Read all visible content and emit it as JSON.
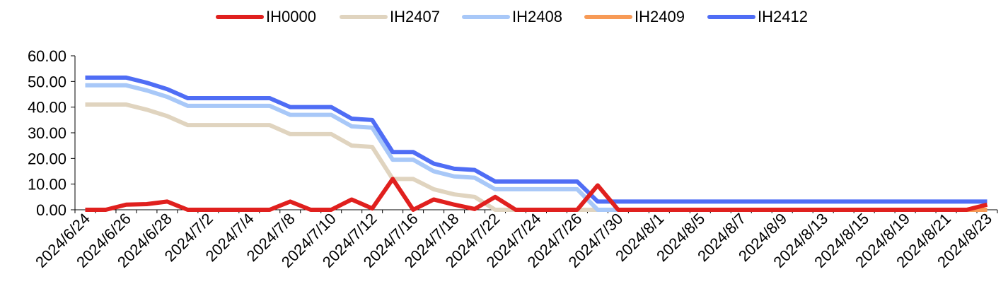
{
  "chart_data": {
    "type": "line",
    "title": "",
    "xlabel": "",
    "ylabel": "",
    "ylim": [
      0,
      60
    ],
    "yticks": [
      "60.00",
      "50.00",
      "40.00",
      "30.00",
      "20.00",
      "10.00",
      "0.00"
    ],
    "grid": false,
    "legend_position": "top-center",
    "x": [
      "2024/6/24",
      "2024/6/25",
      "2024/6/26",
      "2024/6/27",
      "2024/6/28",
      "2024/7/1",
      "2024/7/2",
      "2024/7/3",
      "2024/7/4",
      "2024/7/5",
      "2024/7/8",
      "2024/7/9",
      "2024/7/10",
      "2024/7/11",
      "2024/7/12",
      "2024/7/15",
      "2024/7/16",
      "2024/7/17",
      "2024/7/18",
      "2024/7/19",
      "2024/7/22",
      "2024/7/23",
      "2024/7/24",
      "2024/7/25",
      "2024/7/26",
      "2024/7/29",
      "2024/7/30",
      "2024/7/31",
      "2024/8/1",
      "2024/8/2",
      "2024/8/5",
      "2024/8/6",
      "2024/8/7",
      "2024/8/8",
      "2024/8/9",
      "2024/8/12",
      "2024/8/13",
      "2024/8/14",
      "2024/8/15",
      "2024/8/16",
      "2024/8/19",
      "2024/8/20",
      "2024/8/21",
      "2024/8/22",
      "2024/8/23"
    ],
    "x_tick_labels": [
      "2024/6/24",
      "2024/6/26",
      "2024/6/28",
      "2024/7/2",
      "2024/7/4",
      "2024/7/8",
      "2024/7/10",
      "2024/7/12",
      "2024/7/16",
      "2024/7/18",
      "2024/7/22",
      "2024/7/24",
      "2024/7/26",
      "2024/7/30",
      "2024/8/1",
      "2024/8/5",
      "2024/8/7",
      "2024/8/9",
      "2024/8/13",
      "2024/8/15",
      "2024/8/19",
      "2024/8/21",
      "2024/8/23"
    ],
    "series": [
      {
        "name": "IH2407",
        "color": "#e0d4bf",
        "values": [
          41,
          41,
          41,
          39,
          36.5,
          33,
          33,
          33,
          33,
          33,
          29.5,
          29.5,
          29.5,
          25,
          24.5,
          12,
          12,
          8,
          6,
          5,
          0,
          0,
          0,
          0,
          0,
          0,
          null,
          null,
          null,
          null,
          null,
          null,
          null,
          null,
          null,
          null,
          null,
          null,
          null,
          null,
          null,
          null,
          null,
          null,
          null
        ]
      },
      {
        "name": "IH2408",
        "color": "#a8c8f8",
        "values": [
          48.5,
          48.5,
          48.5,
          46.5,
          44,
          40.5,
          40.5,
          40.5,
          40.5,
          40.5,
          37,
          37,
          37,
          32.5,
          32,
          19.5,
          19.5,
          15,
          13,
          12.5,
          8,
          8,
          8,
          8,
          8,
          0,
          0,
          0,
          0,
          0,
          0,
          0,
          0,
          0,
          0,
          0,
          0,
          0,
          0,
          0,
          0,
          0,
          0,
          0,
          0
        ]
      },
      {
        "name": "IH2409",
        "color": "#f79a56",
        "values": [
          null,
          null,
          null,
          null,
          null,
          null,
          null,
          null,
          null,
          null,
          null,
          null,
          null,
          null,
          null,
          null,
          null,
          null,
          null,
          null,
          null,
          null,
          null,
          null,
          null,
          null,
          0,
          0,
          0,
          0,
          0,
          0,
          0,
          0,
          0,
          0,
          0,
          0,
          0,
          0,
          0,
          0,
          0,
          0,
          0
        ]
      },
      {
        "name": "IH2412",
        "color": "#4f6df5",
        "values": [
          51.5,
          51.5,
          51.5,
          49.5,
          47,
          43.5,
          43.5,
          43.5,
          43.5,
          43.5,
          40,
          40,
          40,
          35.5,
          35,
          22.5,
          22.5,
          18,
          16,
          15.5,
          11,
          11,
          11,
          11,
          11,
          3.2,
          3.2,
          3.2,
          3.2,
          3.2,
          3.2,
          3.2,
          3.2,
          3.2,
          3.2,
          3.2,
          3.2,
          3.2,
          3.2,
          3.2,
          3.2,
          3.2,
          3.2,
          3.2,
          3.2
        ]
      },
      {
        "name": "IH0000",
        "color": "#e0201e",
        "values": [
          0,
          0,
          2,
          2.2,
          3.2,
          0,
          0,
          0,
          0,
          0,
          3.2,
          0,
          0,
          4,
          0.5,
          12,
          0,
          4,
          2,
          0.3,
          5,
          0,
          0,
          0,
          0,
          9.5,
          0,
          0,
          0,
          0,
          0,
          0,
          0,
          0,
          0,
          0,
          0,
          0,
          0,
          0,
          0,
          0,
          0,
          0,
          2
        ]
      }
    ],
    "legend_order": [
      "IH0000",
      "IH2407",
      "IH2408",
      "IH2409",
      "IH2412"
    ]
  }
}
